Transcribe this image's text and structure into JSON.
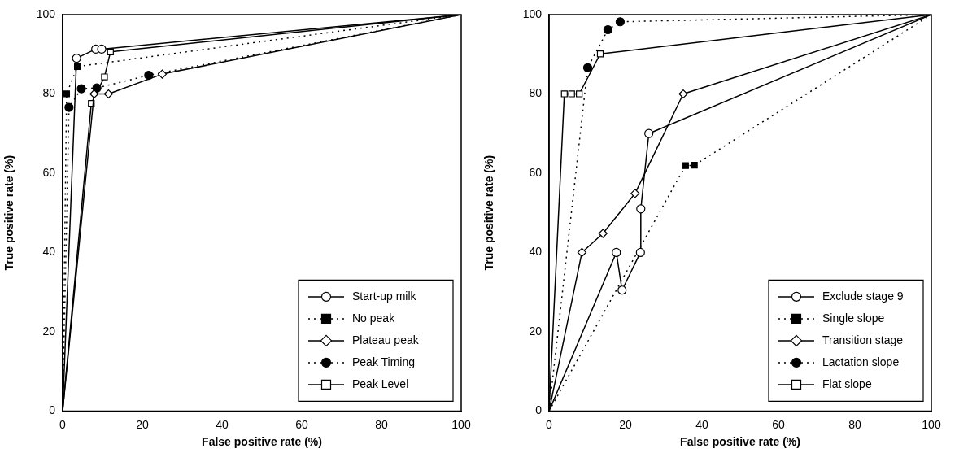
{
  "chart_data": [
    {
      "type": "line",
      "xlabel": "False positive rate (%)",
      "ylabel": "True positive rate (%)",
      "xlim": [
        0,
        100
      ],
      "ylim": [
        0,
        100
      ],
      "xticks": [
        0,
        20,
        40,
        60,
        80,
        100
      ],
      "yticks": [
        0,
        20,
        40,
        60,
        80,
        100
      ],
      "grid": false,
      "legend": "bottom right",
      "series": [
        {
          "name": "Start-up milk",
          "color": "#000000",
          "line_style": "solid",
          "marker": "circle",
          "x": [
            0,
            3.5,
            8.3,
            9.8,
            100
          ],
          "values": [
            0,
            89,
            91.3,
            91.3,
            100
          ]
        },
        {
          "name": "No peak",
          "color": "#000000",
          "line_style": "dotted",
          "marker": "square",
          "x": [
            0,
            1,
            3.7,
            100
          ],
          "values": [
            0,
            80,
            86.9,
            100
          ]
        },
        {
          "name": "Plateau peak",
          "color": "#000000",
          "line_style": "solid",
          "marker": "diamond",
          "x": [
            0,
            7.9,
            11.5,
            25,
            100
          ],
          "values": [
            0,
            80,
            80,
            85,
            100
          ]
        },
        {
          "name": "Peak Timing",
          "color": "#000000",
          "line_style": "dotted",
          "marker": "circle",
          "x": [
            0,
            1.6,
            4.7,
            8.6,
            21.6,
            100
          ],
          "values": [
            0,
            76.6,
            81.3,
            81.5,
            84.7,
            100
          ]
        },
        {
          "name": "Peak Level",
          "color": "#000000",
          "line_style": "solid",
          "marker": "square",
          "x": [
            0,
            7.2,
            10.5,
            12,
            100
          ],
          "values": [
            0,
            77.6,
            84.3,
            90.6,
            100
          ]
        }
      ]
    },
    {
      "type": "line",
      "xlabel": "False positive rate (%)",
      "ylabel": "True positive rate (%)",
      "xlim": [
        0,
        100
      ],
      "ylim": [
        0,
        100
      ],
      "xticks": [
        0,
        20,
        40,
        60,
        80,
        100
      ],
      "yticks": [
        0,
        20,
        40,
        60,
        80,
        100
      ],
      "grid": false,
      "legend": "bottom right",
      "series": [
        {
          "name": "Exclude stage 9",
          "color": "#000000",
          "line_style": "solid",
          "marker": "circle",
          "x": [
            0,
            17.6,
            19.1,
            23.9,
            24,
            26.1,
            100
          ],
          "values": [
            0,
            40,
            30.5,
            40,
            51,
            70,
            100
          ]
        },
        {
          "name": "Single slope",
          "color": "#000000",
          "line_style": "dotted",
          "marker": "square",
          "x": [
            0,
            35.7,
            38,
            100
          ],
          "values": [
            0,
            61.9,
            62,
            100
          ]
        },
        {
          "name": "Transition stage",
          "color": "#000000",
          "line_style": "solid",
          "marker": "diamond",
          "x": [
            0,
            8.6,
            14.1,
            22.5,
            35.1,
            100
          ],
          "values": [
            0,
            40,
            44.8,
            54.9,
            80,
            100
          ]
        },
        {
          "name": "Lactation slope",
          "color": "#000000",
          "line_style": "dotted",
          "marker": "circle",
          "x": [
            0,
            10.1,
            15.4,
            18.6,
            100
          ],
          "values": [
            0,
            86.6,
            96.2,
            98.2,
            100
          ]
        },
        {
          "name": "Flat slope",
          "color": "#000000",
          "line_style": "solid",
          "marker": "square",
          "x": [
            0,
            4,
            5.9,
            7.9,
            13.4,
            100
          ],
          "values": [
            0,
            80,
            80,
            80,
            90.1,
            100
          ]
        }
      ]
    }
  ]
}
